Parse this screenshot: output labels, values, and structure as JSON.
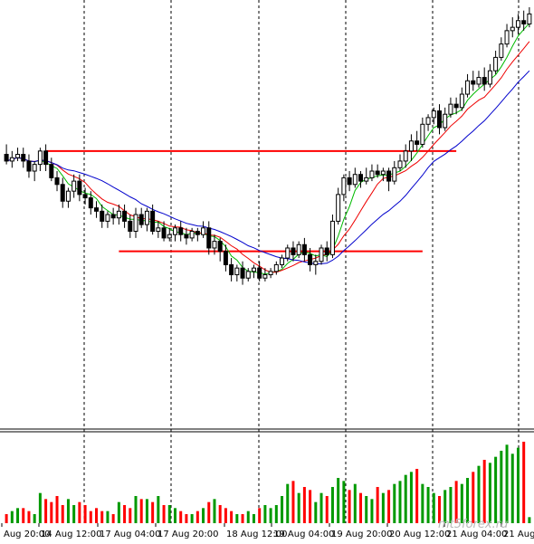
{
  "chart_data": {
    "type": "candlestick",
    "title": "",
    "xlabel": "",
    "ylabel": "",
    "x_ticks": [
      "Aug 20:00",
      "14 Aug 12:00",
      "17 Aug 04:00",
      "17 Aug 20:00",
      "18 Aug 12:00",
      "19 Aug 04:00",
      "19 Aug 20:00",
      "20 Aug 12:00",
      "21 Aug 04:00",
      "21 Aug"
    ],
    "grid_vertical_dashed": true,
    "ylim": [
      0,
      100
    ],
    "candles": [
      [
        66,
        64,
        69,
        63
      ],
      [
        64,
        65,
        67,
        62
      ],
      [
        65,
        66,
        68,
        64
      ],
      [
        66,
        64,
        68,
        62
      ],
      [
        64,
        61,
        66,
        59
      ],
      [
        61,
        63,
        64,
        58
      ],
      [
        63,
        67,
        68,
        61
      ],
      [
        67,
        63,
        69,
        61
      ],
      [
        63,
        59,
        65,
        58
      ],
      [
        59,
        57,
        61,
        55
      ],
      [
        57,
        52,
        59,
        50
      ],
      [
        52,
        55,
        56,
        50
      ],
      [
        55,
        58,
        60,
        53
      ],
      [
        58,
        54,
        60,
        52
      ],
      [
        54,
        53,
        56,
        51
      ],
      [
        53,
        50,
        55,
        48
      ],
      [
        50,
        49,
        52,
        47
      ],
      [
        49,
        46,
        51,
        44
      ],
      [
        46,
        48,
        49,
        44
      ],
      [
        48,
        47,
        50,
        45
      ],
      [
        47,
        49,
        51,
        45
      ],
      [
        49,
        46,
        51,
        44
      ],
      [
        46,
        43,
        48,
        41
      ],
      [
        43,
        48,
        50,
        41
      ],
      [
        48,
        45,
        50,
        44
      ],
      [
        45,
        49,
        50,
        43
      ],
      [
        49,
        43,
        51,
        42
      ],
      [
        43,
        44,
        46,
        41
      ],
      [
        44,
        41,
        46,
        40
      ],
      [
        41,
        42,
        44,
        40
      ],
      [
        42,
        44,
        45,
        40
      ],
      [
        44,
        42,
        46,
        40
      ],
      [
        42,
        41,
        44,
        39
      ],
      [
        41,
        43,
        44,
        40
      ],
      [
        43,
        42,
        44,
        40
      ],
      [
        42,
        44,
        46,
        41
      ],
      [
        44,
        38,
        46,
        36
      ],
      [
        38,
        40,
        42,
        36
      ],
      [
        40,
        37,
        41,
        34
      ],
      [
        37,
        33,
        39,
        31
      ],
      [
        33,
        30,
        35,
        28
      ],
      [
        30,
        32,
        33,
        28
      ],
      [
        32,
        29,
        34,
        27
      ],
      [
        29,
        31,
        32,
        28
      ],
      [
        31,
        32,
        33,
        29
      ],
      [
        32,
        29,
        34,
        28
      ],
      [
        29,
        30,
        32,
        28
      ],
      [
        30,
        31,
        32,
        29
      ],
      [
        31,
        33,
        34,
        30
      ],
      [
        33,
        35,
        36,
        32
      ],
      [
        35,
        38,
        39,
        34
      ],
      [
        38,
        36,
        40,
        34
      ],
      [
        36,
        39,
        40,
        35
      ],
      [
        39,
        36,
        41,
        34
      ],
      [
        36,
        33,
        38,
        31
      ],
      [
        33,
        34,
        36,
        30
      ],
      [
        34,
        38,
        39,
        33
      ],
      [
        38,
        36,
        40,
        34
      ],
      [
        36,
        46,
        48,
        35
      ],
      [
        46,
        54,
        56,
        45
      ],
      [
        54,
        59,
        60,
        52
      ],
      [
        59,
        57,
        61,
        55
      ],
      [
        57,
        60,
        62,
        56
      ],
      [
        60,
        58,
        61,
        56
      ],
      [
        58,
        59,
        62,
        57
      ],
      [
        59,
        61,
        63,
        58
      ],
      [
        61,
        60,
        63,
        59
      ],
      [
        60,
        61,
        62,
        58
      ],
      [
        61,
        58,
        62,
        55
      ],
      [
        58,
        62,
        64,
        57
      ],
      [
        62,
        64,
        66,
        61
      ],
      [
        64,
        67,
        69,
        62
      ],
      [
        67,
        70,
        72,
        64
      ],
      [
        70,
        69,
        73,
        67
      ],
      [
        69,
        75,
        77,
        68
      ],
      [
        75,
        77,
        78,
        73
      ],
      [
        77,
        79,
        80,
        75
      ],
      [
        79,
        74,
        81,
        72
      ],
      [
        74,
        78,
        80,
        73
      ],
      [
        78,
        81,
        83,
        77
      ],
      [
        81,
        80,
        83,
        78
      ],
      [
        80,
        84,
        86,
        79
      ],
      [
        84,
        88,
        90,
        83
      ],
      [
        88,
        87,
        91,
        85
      ],
      [
        87,
        89,
        91,
        86
      ],
      [
        89,
        87,
        92,
        85
      ],
      [
        87,
        91,
        93,
        86
      ],
      [
        91,
        95,
        97,
        90
      ],
      [
        95,
        99,
        101,
        94
      ],
      [
        99,
        103,
        105,
        98
      ],
      [
        103,
        104,
        107,
        101
      ],
      [
        104,
        106,
        108,
        102
      ],
      [
        106,
        105,
        109,
        103
      ],
      [
        105,
        108,
        110,
        104
      ]
    ],
    "ma_series": [
      {
        "color": "#00bb00",
        "period": 5
      },
      {
        "color": "#ee0000",
        "period": 9
      },
      {
        "color": "#0000cc",
        "period": 18
      }
    ],
    "horizontal_lines": [
      {
        "y": 67,
        "x_from_bar": 7,
        "x_to_bar": 80,
        "color": "#ff0000"
      },
      {
        "y": 37,
        "x_from_bar": 20,
        "x_to_bar": 74,
        "color": "#ff0000"
      }
    ],
    "volume": [
      3,
      4,
      5,
      5,
      4,
      3,
      10,
      8,
      7,
      9,
      6,
      8,
      6,
      7,
      6,
      4,
      5,
      4,
      4,
      3,
      7,
      6,
      5,
      9,
      8,
      8,
      7,
      9,
      6,
      6,
      5,
      4,
      3,
      3,
      4,
      5,
      7,
      8,
      6,
      5,
      4,
      3,
      3,
      4,
      3,
      5,
      6,
      5,
      6,
      9,
      13,
      14,
      10,
      12,
      11,
      7,
      10,
      9,
      12,
      15,
      14,
      11,
      13,
      10,
      9,
      8,
      12,
      10,
      11,
      13,
      14,
      16,
      17,
      18,
      13,
      12,
      10,
      9,
      11,
      12,
      14,
      13,
      15,
      17,
      19,
      21,
      20,
      22,
      24,
      26,
      23,
      25,
      27,
      2
    ],
    "volume_colors": {
      "up": "#009900",
      "down": "#ff0000"
    },
    "watermark": "mt5forex.ru"
  }
}
